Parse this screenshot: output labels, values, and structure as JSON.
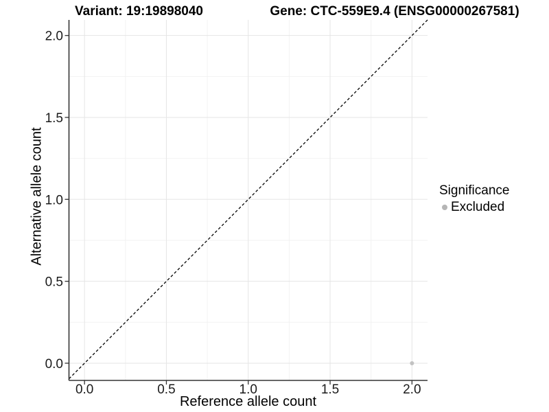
{
  "titles": {
    "variant": "Variant: 19:19898040",
    "gene": "Gene: CTC-559E9.4 (ENSG00000267581)"
  },
  "chart_data": {
    "type": "scatter",
    "title_left": "Variant: 19:19898040",
    "title_right": "Gene: CTC-559E9.4 (ENSG00000267581)",
    "xlabel": "Reference allele count",
    "ylabel": "Alternative allele count",
    "xlim": [
      -0.095,
      2.095
    ],
    "ylim": [
      -0.105,
      2.095
    ],
    "xticks": {
      "values": [
        0,
        0.5,
        1,
        1.5,
        2
      ],
      "labels": [
        "0.0",
        "0.5",
        "1.0",
        "1.5",
        "2.0"
      ]
    },
    "yticks": {
      "values": [
        0,
        0.5,
        1,
        1.5,
        2
      ],
      "labels": [
        "0.0",
        "0.5",
        "1.0",
        "1.5",
        "2.0"
      ]
    },
    "minor_ticks_x": [
      0.25,
      0.75,
      1.25,
      1.75
    ],
    "minor_ticks_y": [
      0.25,
      0.75,
      1.25,
      1.75
    ],
    "grid": true,
    "series": [
      {
        "name": "Excluded",
        "color": "#c2c2c2",
        "points": [
          {
            "x": 2.0,
            "y": 0.0
          }
        ]
      }
    ],
    "reference_line": {
      "type": "identity",
      "style": "dashed",
      "color": "#000000"
    },
    "legend": {
      "title": "Significance",
      "position": "right",
      "items": [
        {
          "label": "Excluded",
          "color": "#b5b5b5"
        }
      ]
    },
    "colors": {
      "grid_major": "#e5e5e5",
      "grid_minor": "#f2f2f2",
      "axis_line": "#333333",
      "tick_mark": "#333333",
      "text": "#000000"
    }
  }
}
